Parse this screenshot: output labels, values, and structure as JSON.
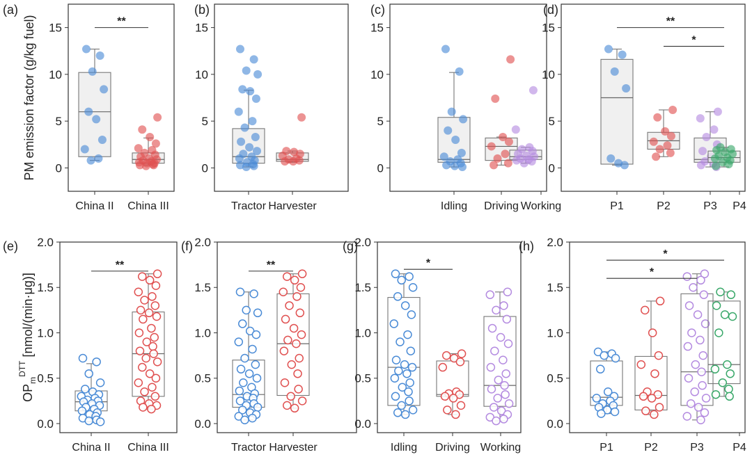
{
  "colors": {
    "blue": "#4a8bd6",
    "red": "#e05050",
    "purple": "#b48be0",
    "green": "#3aa86a"
  },
  "chart_data": [
    {
      "panel": "(a)",
      "type": "box",
      "row": "top",
      "ylabel": "PM emission factor (g/kg fuel)",
      "ylim": [
        -2.5,
        17.5
      ],
      "yticks": [
        "0",
        "5",
        "10",
        "15"
      ],
      "ytick_values": [
        0,
        5,
        10,
        15
      ],
      "categories": [
        "China II",
        "China III"
      ],
      "series": [
        {
          "name": "China II",
          "color": "blue",
          "q1": 1.2,
          "median": 6.0,
          "q3": 10.2,
          "whisker_low": 0.8,
          "whisker_high": 12.7,
          "points": [
            12.7,
            12.0,
            10.3,
            8.4,
            6.0,
            5.2,
            3.0,
            2.0,
            1.0,
            0.8
          ]
        },
        {
          "name": "China III",
          "color": "red",
          "q1": 0.5,
          "median": 0.9,
          "q3": 1.6,
          "whisker_low": 0.3,
          "whisker_high": 3.2,
          "points": [
            5.4,
            4.1,
            3.3,
            2.6,
            2.1,
            1.9,
            1.6,
            1.4,
            1.2,
            1.0,
            0.9,
            0.8,
            0.7,
            0.6,
            0.5,
            0.5,
            0.4,
            0.3,
            0.3,
            0.2
          ]
        }
      ],
      "significance": [
        {
          "from": 0,
          "to": 1,
          "label": "**",
          "y": 15.0
        }
      ]
    },
    {
      "panel": "(b)",
      "type": "box",
      "row": "top",
      "ylim": [
        -2.5,
        17.5
      ],
      "yticks": [
        "0",
        "5",
        "10",
        "15"
      ],
      "ytick_values": [
        0,
        5,
        10,
        15
      ],
      "categories": [
        "Tractor",
        "Harvester"
      ],
      "series": [
        {
          "name": "Tractor",
          "color": "blue",
          "q1": 0.5,
          "median": 1.2,
          "q3": 4.2,
          "whisker_low": 0.1,
          "whisker_high": 8.3,
          "points": [
            12.7,
            11.6,
            10.4,
            10.0,
            8.4,
            8.2,
            7.4,
            6.0,
            5.0,
            4.3,
            3.3,
            2.8,
            2.2,
            1.8,
            1.5,
            1.2,
            1.0,
            0.8,
            0.6,
            0.4,
            0.3,
            0.2,
            0.1
          ]
        },
        {
          "name": "Harvester",
          "color": "red",
          "q1": 0.7,
          "median": 0.9,
          "q3": 1.6,
          "whisker_low": 0.6,
          "whisker_high": 1.8,
          "points": [
            5.4,
            1.8,
            1.7,
            1.5,
            1.3,
            1.0,
            0.9,
            0.8,
            0.7,
            0.7
          ]
        }
      ],
      "significance": []
    },
    {
      "panel": "(c)",
      "type": "box",
      "row": "top",
      "ylim": [
        -2.5,
        17.5
      ],
      "yticks": [
        "0",
        "5",
        "10",
        "15"
      ],
      "ytick_values": [
        0,
        5,
        10,
        15
      ],
      "categories": [
        "Idling",
        "Driving",
        "Working"
      ],
      "series": [
        {
          "name": "Idling",
          "color": "blue",
          "q1": 0.6,
          "median": 0.9,
          "q3": 5.4,
          "whisker_low": 0.1,
          "whisker_high": 10.2,
          "points": [
            12.7,
            10.3,
            6.0,
            5.2,
            4.0,
            3.0,
            1.6,
            1.2,
            0.9,
            0.7,
            0.5,
            0.3,
            0.2,
            0.1
          ]
        },
        {
          "name": "Driving",
          "color": "red",
          "q1": 0.8,
          "median": 2.3,
          "q3": 3.2,
          "whisker_low": 0.3,
          "whisker_high": 3.3,
          "points": [
            11.6,
            7.4,
            3.3,
            2.8,
            2.3,
            1.5,
            1.0,
            0.5,
            0.3
          ]
        },
        {
          "name": "Working",
          "color": "purple",
          "q1": 0.9,
          "median": 1.2,
          "q3": 1.9,
          "whisker_low": 0.5,
          "whisker_high": 2.2,
          "points": [
            8.3,
            4.1,
            2.2,
            2.0,
            1.8,
            1.5,
            1.3,
            1.2,
            1.0,
            0.9,
            0.8,
            0.7,
            0.5
          ]
        }
      ],
      "significance": []
    },
    {
      "panel": "(d)",
      "type": "box",
      "row": "top",
      "ylim": [
        -2.5,
        17.5
      ],
      "yticks": [
        "0",
        "5",
        "10",
        "15"
      ],
      "ytick_values": [
        0,
        5,
        10,
        15
      ],
      "categories": [
        "P1",
        "P2",
        "P3",
        "P4"
      ],
      "series": [
        {
          "name": "P1",
          "color": "blue",
          "q1": 0.4,
          "median": 7.5,
          "q3": 11.6,
          "whisker_low": 0.3,
          "whisker_high": 12.7,
          "points": [
            12.7,
            12.1,
            10.3,
            8.5,
            1.0,
            0.5,
            0.3
          ]
        },
        {
          "name": "P2",
          "color": "red",
          "q1": 2.0,
          "median": 2.9,
          "q3": 3.8,
          "whisker_low": 1.2,
          "whisker_high": 6.2,
          "points": [
            6.2,
            5.4,
            3.9,
            3.4,
            2.8,
            2.4,
            2.0,
            1.6,
            1.2
          ]
        },
        {
          "name": "P3",
          "color": "purple",
          "q1": 0.6,
          "median": 0.9,
          "q3": 3.2,
          "whisker_low": 0.1,
          "whisker_high": 6.0,
          "points": [
            6.0,
            5.3,
            4.1,
            3.3,
            2.5,
            1.8,
            1.2,
            0.9,
            0.7,
            0.5,
            0.3,
            0.1
          ]
        },
        {
          "name": "P4",
          "color": "green",
          "q1": 0.6,
          "median": 1.1,
          "q3": 1.8,
          "whisker_low": 0.1,
          "whisker_high": 2.2,
          "points": [
            2.2,
            2.0,
            1.9,
            1.7,
            1.5,
            1.3,
            1.1,
            1.0,
            0.8,
            0.6,
            0.4,
            0.2
          ]
        }
      ],
      "significance": [
        {
          "from": 0,
          "to": 3,
          "label": "**",
          "y": 15.0
        },
        {
          "from": 1,
          "to": 3,
          "label": "*",
          "y": 13.0
        }
      ]
    },
    {
      "panel": "(e)",
      "type": "box",
      "row": "bottom",
      "hollow": true,
      "ylabel_prefix": "OP",
      "ylabel_sub": "m",
      "ylabel_sup": "DTT",
      "ylabel_suffix": "[nmol/(min·μg)]",
      "ylim": [
        -0.1,
        2.0
      ],
      "yticks": [
        "0.0",
        "0.5",
        "1.0",
        "1.5",
        "2.0"
      ],
      "ytick_values": [
        0,
        0.5,
        1.0,
        1.5,
        2.0
      ],
      "categories": [
        "China II",
        "China III"
      ],
      "series": [
        {
          "name": "China II",
          "color": "blue",
          "q1": 0.14,
          "median": 0.24,
          "q3": 0.36,
          "whisker_low": 0.02,
          "whisker_high": 0.66,
          "points": [
            0.72,
            0.68,
            0.55,
            0.45,
            0.38,
            0.35,
            0.32,
            0.3,
            0.28,
            0.26,
            0.25,
            0.24,
            0.22,
            0.2,
            0.18,
            0.16,
            0.14,
            0.12,
            0.1,
            0.08,
            0.06,
            0.04,
            0.03,
            0.02
          ]
        },
        {
          "name": "China III",
          "color": "red",
          "q1": 0.3,
          "median": 0.77,
          "q3": 1.23,
          "whisker_low": 0.16,
          "whisker_high": 1.65,
          "points": [
            1.65,
            1.62,
            1.58,
            1.52,
            1.45,
            1.4,
            1.36,
            1.3,
            1.25,
            1.22,
            1.18,
            1.15,
            1.05,
            1.0,
            0.95,
            0.9,
            0.85,
            0.8,
            0.77,
            0.72,
            0.68,
            0.62,
            0.55,
            0.5,
            0.45,
            0.4,
            0.35,
            0.3,
            0.25,
            0.22,
            0.2,
            0.18,
            0.16
          ]
        }
      ],
      "significance": [
        {
          "from": 0,
          "to": 1,
          "label": "**",
          "y": 1.68
        }
      ]
    },
    {
      "panel": "(f)",
      "type": "box",
      "row": "bottom",
      "hollow": true,
      "ylim": [
        -0.1,
        2.0
      ],
      "yticks": [
        "0.0",
        "0.5",
        "1.0",
        "1.5",
        "2.0"
      ],
      "ytick_values": [
        0,
        0.5,
        1.0,
        1.5,
        2.0
      ],
      "categories": [
        "Tractor",
        "Harvester"
      ],
      "series": [
        {
          "name": "Tractor",
          "color": "blue",
          "q1": 0.18,
          "median": 0.32,
          "q3": 0.7,
          "whisker_low": 0.04,
          "whisker_high": 1.45,
          "points": [
            1.45,
            1.43,
            1.25,
            1.22,
            1.1,
            1.02,
            0.98,
            0.9,
            0.82,
            0.72,
            0.65,
            0.6,
            0.55,
            0.5,
            0.45,
            0.4,
            0.36,
            0.33,
            0.3,
            0.28,
            0.25,
            0.22,
            0.2,
            0.18,
            0.15,
            0.12,
            0.1,
            0.08,
            0.06,
            0.04
          ]
        },
        {
          "name": "Harvester",
          "color": "red",
          "q1": 0.31,
          "median": 0.88,
          "q3": 1.43,
          "whisker_low": 0.17,
          "whisker_high": 1.65,
          "points": [
            1.65,
            1.62,
            1.58,
            1.5,
            1.45,
            1.4,
            1.3,
            1.22,
            1.15,
            1.05,
            0.98,
            0.92,
            0.88,
            0.8,
            0.72,
            0.65,
            0.55,
            0.45,
            0.38,
            0.3,
            0.25,
            0.2,
            0.17
          ]
        }
      ],
      "significance": [
        {
          "from": 0,
          "to": 1,
          "label": "**",
          "y": 1.68
        }
      ]
    },
    {
      "panel": "(g)",
      "type": "box",
      "row": "bottom",
      "hollow": true,
      "ylim": [
        -0.1,
        2.0
      ],
      "yticks": [
        "0.0",
        "0.5",
        "1.0",
        "1.5",
        "2.0"
      ],
      "ytick_values": [
        0,
        0.5,
        1.0,
        1.5,
        2.0
      ],
      "categories": [
        "Idling",
        "Driving",
        "Working"
      ],
      "series": [
        {
          "name": "Idling",
          "color": "blue",
          "q1": 0.2,
          "median": 0.62,
          "q3": 1.39,
          "whisker_low": 0.1,
          "whisker_high": 1.65,
          "points": [
            1.65,
            1.62,
            1.58,
            1.5,
            1.4,
            1.3,
            1.2,
            1.1,
            0.98,
            0.9,
            0.8,
            0.7,
            0.65,
            0.62,
            0.58,
            0.55,
            0.5,
            0.45,
            0.4,
            0.35,
            0.3,
            0.25,
            0.2,
            0.15,
            0.12,
            0.1
          ]
        },
        {
          "name": "Driving",
          "color": "red",
          "q1": 0.3,
          "median": 0.32,
          "q3": 0.69,
          "whisker_low": 0.1,
          "whisker_high": 0.77,
          "points": [
            0.77,
            0.75,
            0.72,
            0.68,
            0.62,
            0.35,
            0.33,
            0.32,
            0.3,
            0.28,
            0.2,
            0.15,
            0.1
          ]
        },
        {
          "name": "Working",
          "color": "purple",
          "q1": 0.19,
          "median": 0.42,
          "q3": 1.18,
          "whisker_low": 0.03,
          "whisker_high": 1.45,
          "points": [
            1.45,
            1.42,
            1.3,
            1.25,
            1.15,
            1.05,
            0.95,
            0.88,
            0.8,
            0.7,
            0.62,
            0.55,
            0.48,
            0.42,
            0.38,
            0.32,
            0.28,
            0.22,
            0.18,
            0.14,
            0.1,
            0.07,
            0.05,
            0.03
          ]
        }
      ],
      "significance": [
        {
          "from": 0,
          "to": 1,
          "label": "*",
          "y": 1.7
        }
      ]
    },
    {
      "panel": "(h)",
      "type": "box",
      "row": "bottom",
      "hollow": true,
      "ylim": [
        -0.1,
        2.0
      ],
      "yticks": [
        "0.0",
        "0.5",
        "1.0",
        "1.5",
        "2.0"
      ],
      "ytick_values": [
        0,
        0.5,
        1.0,
        1.5,
        2.0
      ],
      "categories": [
        "P1",
        "P2",
        "P3",
        "P4"
      ],
      "series": [
        {
          "name": "P1",
          "color": "blue",
          "q1": 0.2,
          "median": 0.29,
          "q3": 0.69,
          "whisker_low": 0.11,
          "whisker_high": 0.79,
          "points": [
            0.79,
            0.77,
            0.75,
            0.72,
            0.6,
            0.35,
            0.3,
            0.28,
            0.25,
            0.22,
            0.2,
            0.18,
            0.15,
            0.13,
            0.11
          ]
        },
        {
          "name": "P2",
          "color": "red",
          "q1": 0.15,
          "median": 0.31,
          "q3": 0.74,
          "whisker_low": 0.1,
          "whisker_high": 1.35,
          "points": [
            1.35,
            1.25,
            1.0,
            0.75,
            0.65,
            0.55,
            0.35,
            0.32,
            0.3,
            0.28,
            0.18,
            0.14,
            0.1
          ]
        },
        {
          "name": "P3",
          "color": "purple",
          "q1": 0.2,
          "median": 0.57,
          "q3": 1.43,
          "whisker_low": 0.04,
          "whisker_high": 1.65,
          "points": [
            1.65,
            1.62,
            1.58,
            1.5,
            1.42,
            1.3,
            1.2,
            1.1,
            1.0,
            0.92,
            0.85,
            0.75,
            0.65,
            0.57,
            0.5,
            0.42,
            0.35,
            0.28,
            0.22,
            0.18,
            0.12,
            0.08,
            0.04
          ]
        },
        {
          "name": "P4",
          "color": "green",
          "q1": 0.44,
          "median": 0.65,
          "q3": 1.35,
          "whisker_low": 0.3,
          "whisker_high": 1.45,
          "points": [
            1.45,
            1.42,
            1.3,
            1.2,
            1.18,
            1.0,
            0.65,
            0.6,
            0.55,
            0.45,
            0.38,
            0.32,
            0.3
          ]
        }
      ],
      "significance": [
        {
          "from": 0,
          "to": 2,
          "label": "*",
          "y": 1.6
        },
        {
          "from": 0,
          "to": 3,
          "label": "*",
          "y": 1.8
        }
      ]
    }
  ]
}
